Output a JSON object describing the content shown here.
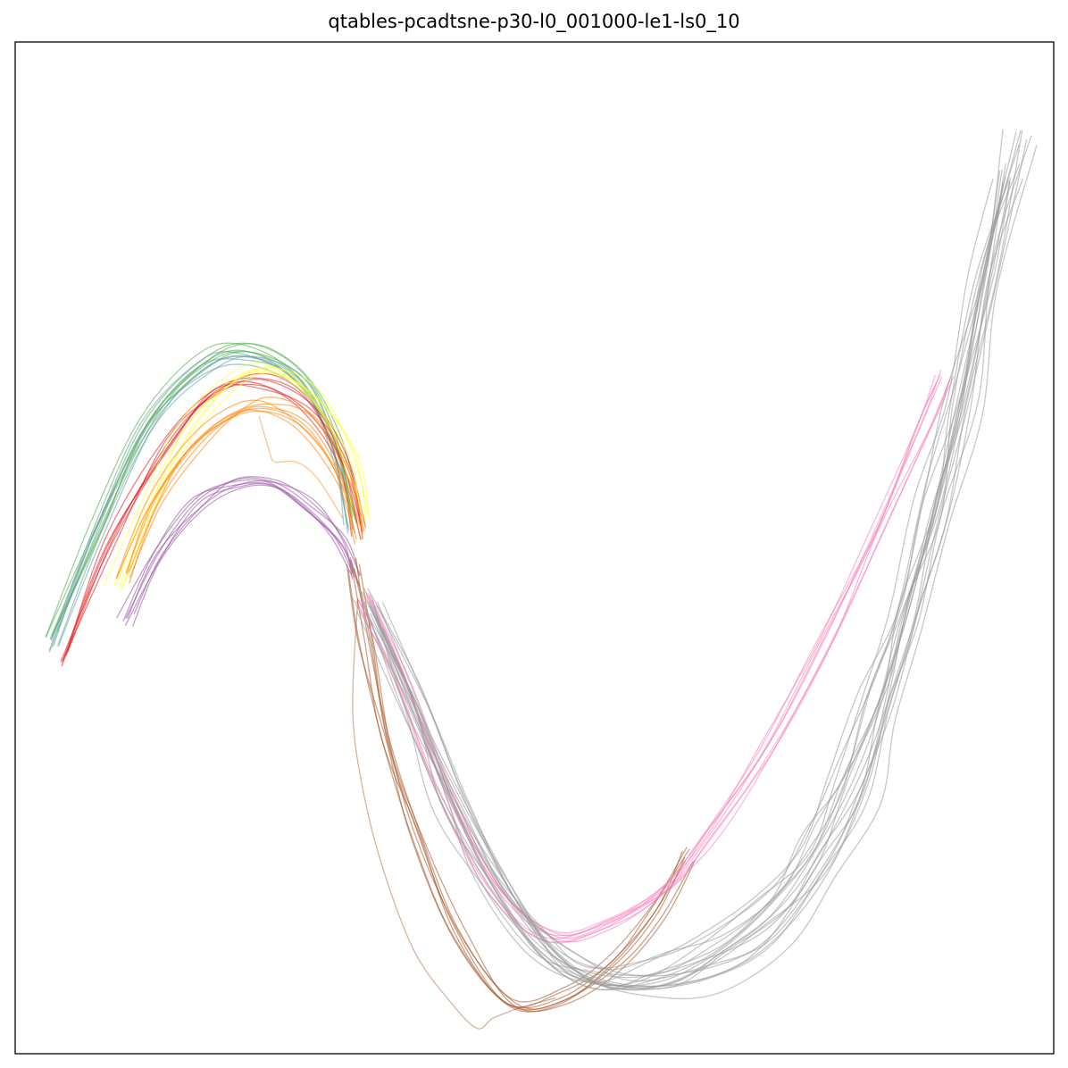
{
  "chart_data": {
    "type": "line",
    "title": "qtables-pcadtsne-p30-l0_001000-le1-ls0_10",
    "xlabel": "",
    "ylabel": "",
    "axes_ticks": false,
    "grid": false,
    "legend": "none",
    "xlim": [
      0,
      100
    ],
    "ylim": [
      0,
      100
    ],
    "bundles": [
      {
        "name": "green",
        "color": "#4daf4a",
        "count": 6,
        "points": [
          [
            3.2,
            41.5
          ],
          [
            7.5,
            52.0
          ],
          [
            12.5,
            62.5
          ],
          [
            17.5,
            68.5
          ],
          [
            22.0,
            69.8
          ],
          [
            27.0,
            67.0
          ],
          [
            30.5,
            61.0
          ],
          [
            32.5,
            53.0
          ]
        ]
      },
      {
        "name": "teal",
        "color": "#5f9ea0",
        "count": 6,
        "points": [
          [
            3.8,
            40.5
          ],
          [
            8.0,
            51.5
          ],
          [
            13.0,
            62.0
          ],
          [
            18.0,
            67.8
          ],
          [
            22.5,
            69.0
          ],
          [
            27.5,
            66.5
          ],
          [
            31.0,
            60.0
          ],
          [
            32.5,
            52.0
          ]
        ]
      },
      {
        "name": "red",
        "color": "#e41a1c",
        "count": 6,
        "points": [
          [
            4.5,
            39.0
          ],
          [
            9.0,
            50.5
          ],
          [
            14.5,
            60.5
          ],
          [
            19.0,
            65.5
          ],
          [
            23.5,
            66.5
          ],
          [
            28.0,
            64.0
          ],
          [
            31.5,
            58.5
          ],
          [
            33.0,
            51.5
          ]
        ]
      },
      {
        "name": "yellow",
        "color": "#ffff33",
        "count": 6,
        "points": [
          [
            9.5,
            46.0
          ],
          [
            12.5,
            54.0
          ],
          [
            16.5,
            61.5
          ],
          [
            21.0,
            66.5
          ],
          [
            25.0,
            67.5
          ],
          [
            29.0,
            64.5
          ],
          [
            32.0,
            59.0
          ],
          [
            33.5,
            52.5
          ]
        ]
      },
      {
        "name": "orange",
        "color": "#ff7f00",
        "count": 7,
        "points": [
          [
            10.5,
            47.0
          ],
          [
            13.0,
            54.0
          ],
          [
            16.5,
            59.5
          ],
          [
            20.5,
            63.0
          ],
          [
            24.0,
            64.0
          ],
          [
            28.0,
            62.0
          ],
          [
            31.5,
            56.5
          ],
          [
            33.0,
            51.0
          ]
        ]
      },
      {
        "name": "purple",
        "color": "#984ea3",
        "count": 7,
        "points": [
          [
            10.5,
            42.5
          ],
          [
            13.5,
            49.0
          ],
          [
            17.5,
            54.0
          ],
          [
            21.0,
            56.0
          ],
          [
            24.5,
            56.0
          ],
          [
            28.0,
            53.8
          ],
          [
            31.0,
            50.5
          ],
          [
            32.5,
            47.0
          ]
        ]
      },
      {
        "name": "brown",
        "color": "#a65628",
        "count": 7,
        "points": [
          [
            32.8,
            48.5
          ],
          [
            34.0,
            41.0
          ],
          [
            36.0,
            31.0
          ],
          [
            39.0,
            21.5
          ],
          [
            43.0,
            12.0
          ],
          [
            48.0,
            5.0
          ],
          [
            53.0,
            5.5
          ],
          [
            58.0,
            9.0
          ],
          [
            62.0,
            14.0
          ],
          [
            65.0,
            19.5
          ]
        ]
      },
      {
        "name": "pink",
        "color": "#f781bf",
        "count": 8,
        "points": [
          [
            33.5,
            45.5
          ],
          [
            37.0,
            37.5
          ],
          [
            41.0,
            27.0
          ],
          [
            46.0,
            17.0
          ],
          [
            51.5,
            12.0
          ],
          [
            57.0,
            13.0
          ],
          [
            62.5,
            16.5
          ],
          [
            67.0,
            22.0
          ],
          [
            72.5,
            30.5
          ],
          [
            78.0,
            41.0
          ],
          [
            83.0,
            52.0
          ],
          [
            87.5,
            62.5
          ],
          [
            89.5,
            67.0
          ]
        ]
      },
      {
        "name": "gray-main",
        "color": "#999999",
        "count": 11,
        "points": [
          [
            34.0,
            45.0
          ],
          [
            38.0,
            35.5
          ],
          [
            42.0,
            25.5
          ],
          [
            46.0,
            17.5
          ],
          [
            51.0,
            10.5
          ],
          [
            56.0,
            7.5
          ],
          [
            62.0,
            8.5
          ],
          [
            67.5,
            11.0
          ],
          [
            73.0,
            15.0
          ],
          [
            77.0,
            21.0
          ],
          [
            80.0,
            28.0
          ],
          [
            83.0,
            36.0
          ],
          [
            85.5,
            44.5
          ],
          [
            88.5,
            55.0
          ],
          [
            91.0,
            65.0
          ],
          [
            93.5,
            77.0
          ],
          [
            95.5,
            87.0
          ]
        ]
      },
      {
        "name": "gray-outer",
        "color": "#999999",
        "count": 8,
        "points": [
          [
            34.5,
            43.5
          ],
          [
            39.0,
            33.5
          ],
          [
            43.5,
            23.0
          ],
          [
            48.5,
            14.5
          ],
          [
            54.0,
            8.0
          ],
          [
            60.0,
            6.0
          ],
          [
            67.0,
            7.5
          ],
          [
            73.0,
            11.5
          ],
          [
            78.0,
            18.0
          ],
          [
            81.5,
            25.5
          ],
          [
            84.0,
            34.0
          ],
          [
            86.5,
            43.0
          ],
          [
            89.0,
            53.0
          ],
          [
            91.5,
            64.0
          ],
          [
            94.0,
            77.0
          ],
          [
            96.5,
            90.0
          ]
        ]
      }
    ],
    "outliers": [
      {
        "name": "brown-outlier",
        "color": "#a65628",
        "count": 1,
        "points": [
          [
            33.0,
            45.0
          ],
          [
            32.5,
            34.0
          ],
          [
            33.5,
            26.0
          ],
          [
            35.5,
            18.0
          ],
          [
            38.5,
            10.0
          ],
          [
            42.0,
            5.0
          ],
          [
            44.5,
            2.5
          ],
          [
            46.0,
            3.5
          ],
          [
            48.5,
            4.5
          ],
          [
            52.0,
            5.5
          ]
        ]
      },
      {
        "name": "orange-outlier",
        "color": "#ff7f00",
        "count": 1,
        "points": [
          [
            23.5,
            63.0
          ],
          [
            24.5,
            59.5
          ],
          [
            25.0,
            58.5
          ],
          [
            27.0,
            58.5
          ],
          [
            29.0,
            57.0
          ],
          [
            31.5,
            53.0
          ]
        ]
      }
    ]
  }
}
